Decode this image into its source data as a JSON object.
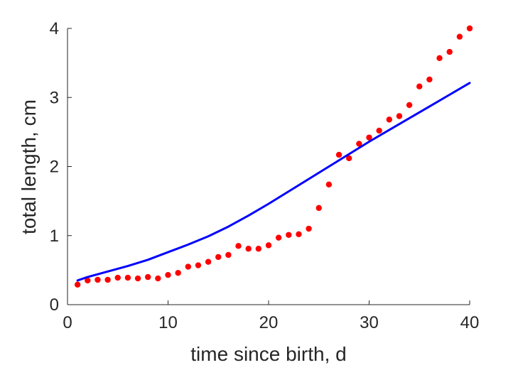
{
  "chart_data": {
    "type": "scatter",
    "xlabel": "time since birth, d",
    "ylabel": "total length, cm",
    "xlim": [
      0,
      40
    ],
    "ylim": [
      0,
      4
    ],
    "xticks": [
      0,
      10,
      20,
      30,
      40
    ],
    "yticks": [
      0,
      1,
      2,
      3,
      4
    ],
    "grid": false,
    "series": [
      {
        "kind": "scatter",
        "color": "#ff0000",
        "x": [
          1,
          2,
          3,
          4,
          5,
          6,
          7,
          8,
          9,
          10,
          11,
          12,
          13,
          14,
          15,
          16,
          17,
          18,
          19,
          20,
          21,
          22,
          23,
          24,
          25,
          26,
          27,
          28,
          29,
          30,
          31,
          32,
          33,
          34,
          35,
          36,
          37,
          38,
          39,
          40
        ],
        "y": [
          0.29,
          0.35,
          0.36,
          0.36,
          0.39,
          0.39,
          0.38,
          0.4,
          0.38,
          0.43,
          0.46,
          0.55,
          0.57,
          0.62,
          0.69,
          0.72,
          0.85,
          0.81,
          0.81,
          0.86,
          0.97,
          1.01,
          1.02,
          1.1,
          1.4,
          1.74,
          2.17,
          2.12,
          2.33,
          2.42,
          2.52,
          2.68,
          2.73,
          2.89,
          3.16,
          3.26,
          3.57,
          3.66,
          3.88,
          4.0
        ]
      },
      {
        "kind": "line",
        "color": "#0000ff",
        "x": [
          1,
          2,
          4,
          6,
          8,
          10,
          12,
          14,
          16,
          18,
          20,
          22,
          24,
          26,
          28,
          30,
          32,
          34,
          36,
          38,
          40
        ],
        "y": [
          0.35,
          0.4,
          0.48,
          0.56,
          0.65,
          0.76,
          0.87,
          0.99,
          1.13,
          1.29,
          1.46,
          1.64,
          1.82,
          2.0,
          2.18,
          2.36,
          2.53,
          2.7,
          2.87,
          3.04,
          3.21
        ]
      }
    ]
  }
}
